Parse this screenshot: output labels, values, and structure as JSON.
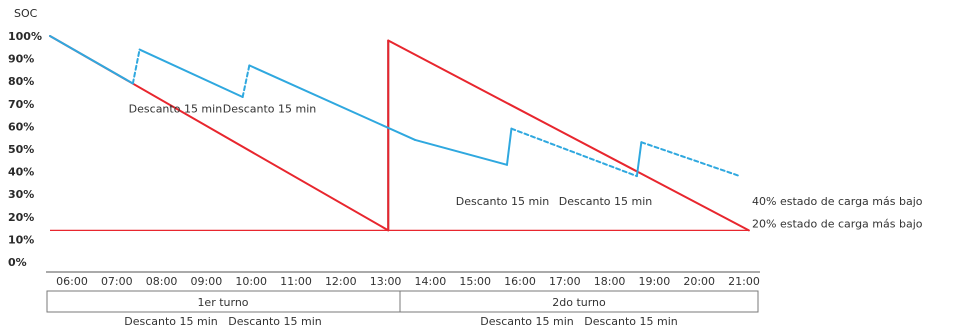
{
  "chart_data": {
    "type": "line",
    "ylabel": "SOC",
    "y_ticks": [
      "100%",
      "90%",
      "80%",
      "70%",
      "60%",
      "50%",
      "40%",
      "30%",
      "20%",
      "10%",
      "0%"
    ],
    "x_ticks": [
      "06:00",
      "07:00",
      "08:00",
      "09:00",
      "10:00",
      "11:00",
      "12:00",
      "13:00",
      "14:00",
      "15:00",
      "16:00",
      "17:00",
      "18:00",
      "19:00",
      "20:00",
      "21:00"
    ],
    "x_start_hour": 6,
    "series": [
      {
        "color": "#e8262e",
        "points": [
          [
            6.0,
            100
          ],
          [
            13.55,
            14
          ],
          [
            13.55,
            98
          ],
          [
            21.6,
            14
          ]
        ]
      },
      {
        "color": "#2fa8df",
        "points": [
          [
            6.0,
            100
          ],
          [
            7.85,
            79
          ],
          [
            8.0,
            94
          ],
          [
            10.3,
            73
          ],
          [
            10.45,
            87
          ],
          [
            14.15,
            54
          ],
          [
            16.2,
            43
          ],
          [
            16.3,
            59
          ],
          [
            19.1,
            38
          ],
          [
            19.2,
            53
          ],
          [
            21.4,
            38
          ]
        ],
        "dashed_segments": [
          1,
          3,
          7,
          9
        ]
      }
    ],
    "reference_lines": [
      {
        "y": 14,
        "color": "#e8262e",
        "x_range": [
          6.0,
          21.6
        ]
      }
    ],
    "shift_divider": {
      "x": 13.55,
      "color": "#6b6b6b",
      "y_range": [
        14,
        98
      ]
    },
    "annotations": [
      {
        "text": "Descanto 15 min",
        "x": 8.8,
        "y": 68
      },
      {
        "text": "Descanto 15 min",
        "x": 10.9,
        "y": 68
      },
      {
        "text": "Descanto 15 min",
        "x": 16.1,
        "y": 27
      },
      {
        "text": "Descanto 15 min",
        "x": 18.4,
        "y": 27
      }
    ],
    "right_labels": [
      {
        "text": "40% estado de carga más bajo",
        "y": 27
      },
      {
        "text": "20% estado de carga más bajo",
        "y": 17
      }
    ]
  },
  "shifts": [
    {
      "label": "1er turno"
    },
    {
      "label": "2do turno"
    }
  ],
  "footer": [
    "Descanto 15 min   Descanto 15 min",
    "Descanto 15 min   Descanto 15 min"
  ]
}
